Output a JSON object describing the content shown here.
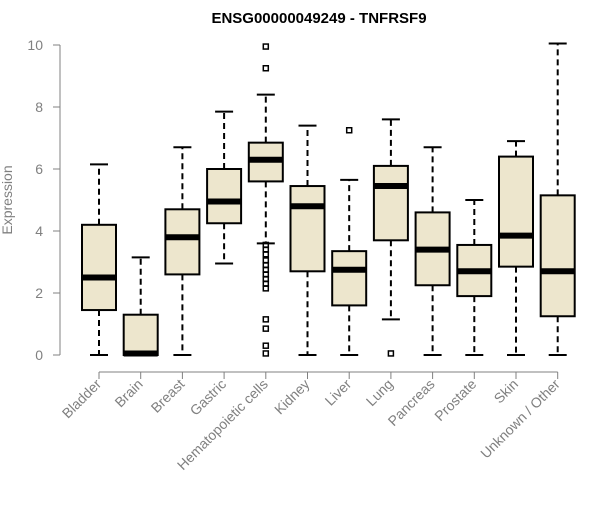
{
  "chart_data": {
    "type": "box",
    "title": "ENSG00000049249 - TNFRSF9",
    "xlabel": "",
    "ylabel": "Expression",
    "ylim": [
      0,
      10
    ],
    "yticks": [
      "0",
      "2",
      "4",
      "6",
      "8",
      "10"
    ],
    "grid": false,
    "colors": {
      "box_fill": "#ede6cd",
      "box_stroke": "#000000",
      "median": "#000000",
      "axis": "#808080",
      "text": "#808080"
    },
    "categories": [
      "Bladder",
      "Brain",
      "Breast",
      "Gastric",
      "Hematopoietic cells",
      "Kidney",
      "Liver",
      "Lung",
      "Pancreas",
      "Prostate",
      "Skin",
      "Unknown / Other"
    ],
    "boxes": [
      {
        "category": "Bladder",
        "whisker_low": 0,
        "q1": 1.45,
        "median": 2.5,
        "q3": 4.2,
        "whisker_high": 6.15,
        "outliers": []
      },
      {
        "category": "Brain",
        "whisker_low": 0,
        "q1": 0,
        "median": 0.05,
        "q3": 1.3,
        "whisker_high": 3.15,
        "outliers": []
      },
      {
        "category": "Breast",
        "whisker_low": 0,
        "q1": 2.6,
        "median": 3.8,
        "q3": 4.7,
        "whisker_high": 6.7,
        "outliers": []
      },
      {
        "category": "Gastric",
        "whisker_low": 2.95,
        "q1": 4.25,
        "median": 4.95,
        "q3": 6.0,
        "whisker_high": 7.85,
        "outliers": []
      },
      {
        "category": "Hematopoietic cells",
        "whisker_low": 3.6,
        "q1": 5.6,
        "median": 6.3,
        "q3": 6.85,
        "whisker_high": 8.4,
        "outliers": [
          9.95,
          9.25,
          3.55,
          3.4,
          3.25,
          3.05,
          2.9,
          2.75,
          2.6,
          2.45,
          2.3,
          2.15,
          1.15,
          0.85,
          0.3,
          0.05
        ]
      },
      {
        "category": "Kidney",
        "whisker_low": 0,
        "q1": 2.7,
        "median": 4.8,
        "q3": 5.45,
        "whisker_high": 7.4,
        "outliers": []
      },
      {
        "category": "Liver",
        "whisker_low": 0,
        "q1": 1.6,
        "median": 2.75,
        "q3": 3.35,
        "whisker_high": 5.65,
        "outliers": [
          7.25
        ]
      },
      {
        "category": "Lung",
        "whisker_low": 1.15,
        "q1": 3.7,
        "median": 5.45,
        "q3": 6.1,
        "whisker_high": 7.6,
        "outliers": [
          0.05
        ]
      },
      {
        "category": "Pancreas",
        "whisker_low": 0,
        "q1": 2.25,
        "median": 3.4,
        "q3": 4.6,
        "whisker_high": 6.7,
        "outliers": []
      },
      {
        "category": "Prostate",
        "whisker_low": 0,
        "q1": 1.9,
        "median": 2.7,
        "q3": 3.55,
        "whisker_high": 5.0,
        "outliers": []
      },
      {
        "category": "Skin",
        "whisker_low": 0,
        "q1": 2.85,
        "median": 3.85,
        "q3": 6.4,
        "whisker_high": 6.9,
        "outliers": []
      },
      {
        "category": "Unknown / Other",
        "whisker_low": 0,
        "q1": 1.25,
        "median": 2.7,
        "q3": 5.15,
        "whisker_high": 10.05,
        "outliers": []
      }
    ]
  }
}
